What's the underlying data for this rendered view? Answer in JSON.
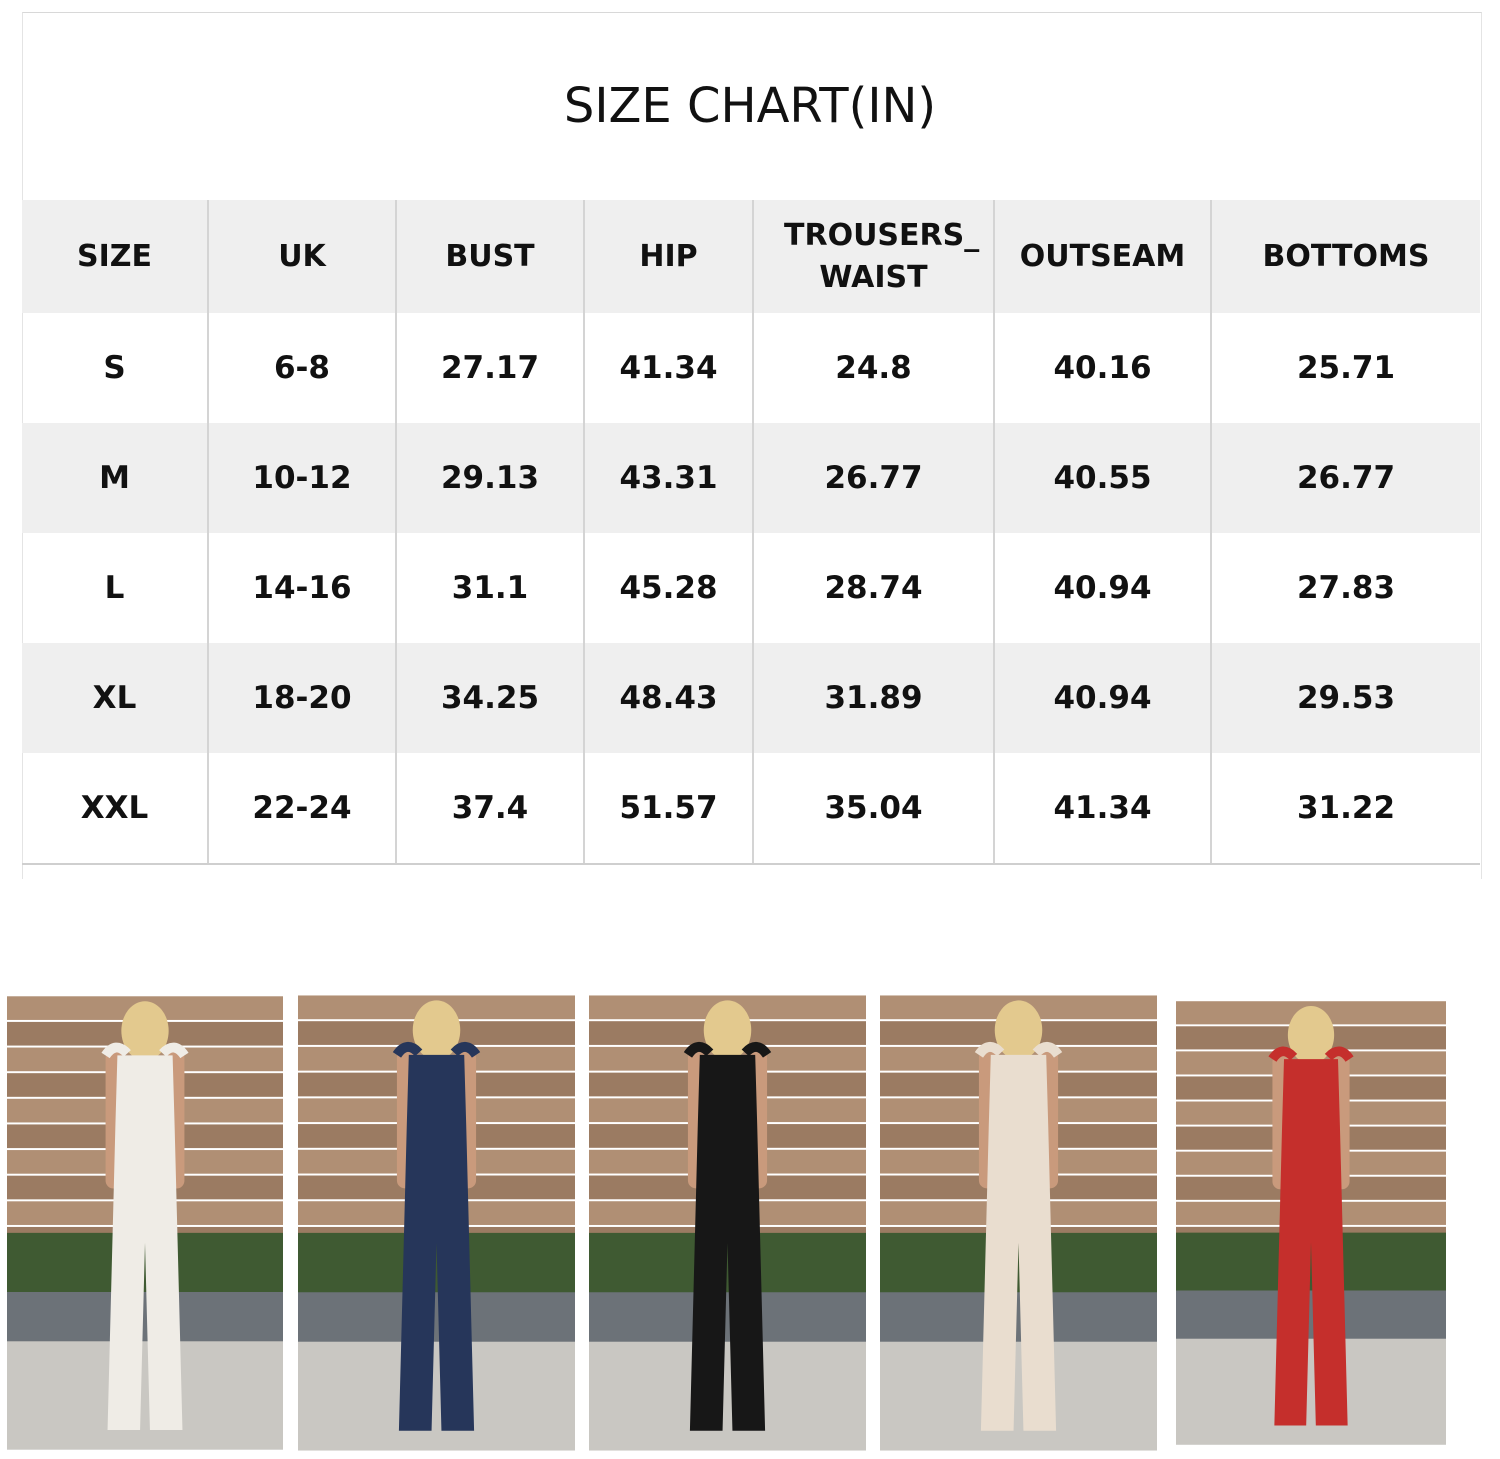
{
  "title": "SIZE CHART(IN)",
  "table": {
    "headers": [
      "SIZE",
      "UK",
      "BUST",
      "HIP",
      "TROUSERS_ WAIST",
      "OUTSEAM",
      "BOTTOMS"
    ],
    "rows": [
      [
        "S",
        "6-8",
        "27.17",
        "41.34",
        "24.8",
        "40.16",
        "25.71"
      ],
      [
        "M",
        "10-12",
        "29.13",
        "43.31",
        "26.77",
        "40.55",
        "26.77"
      ],
      [
        "L",
        "14-16",
        "31.1",
        "45.28",
        "28.74",
        "40.94",
        "27.83"
      ],
      [
        "XL",
        "18-20",
        "34.25",
        "48.43",
        "31.89",
        "40.94",
        "29.53"
      ],
      [
        "XXL",
        "22-24",
        "37.4",
        "51.57",
        "35.04",
        "41.34",
        "31.22"
      ]
    ]
  },
  "photos": [
    {
      "color_name": "white",
      "color": "#efece6"
    },
    {
      "color_name": "navy",
      "color": "#26365a"
    },
    {
      "color_name": "black",
      "color": "#171717"
    },
    {
      "color_name": "beige",
      "color": "#e9ddcf"
    },
    {
      "color_name": "red",
      "color": "#c52f2c"
    }
  ]
}
